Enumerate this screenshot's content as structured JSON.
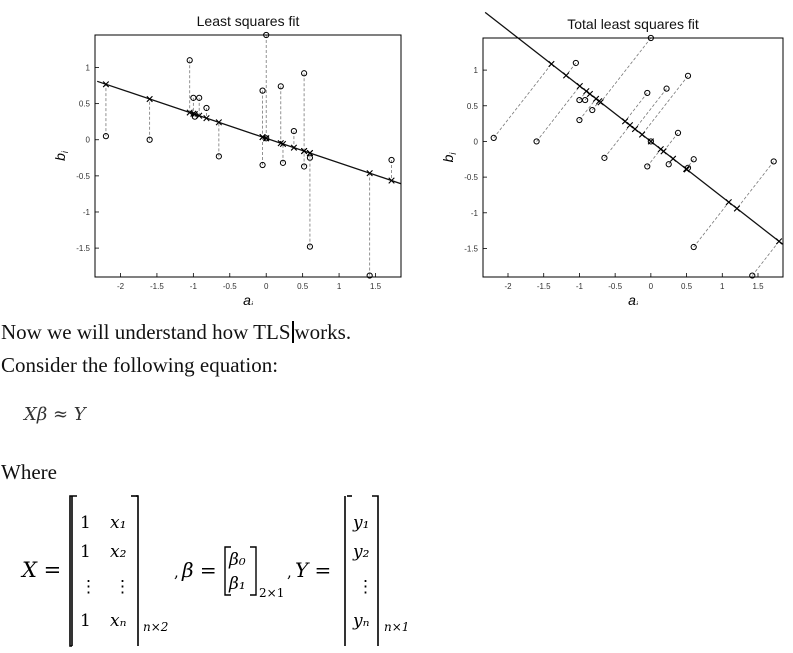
{
  "chart_data": [
    {
      "type": "scatter",
      "title": "Least squares fit",
      "xlabel": "a_i",
      "ylabel": "b_i",
      "xlim": [
        -2.35,
        1.85
      ],
      "ylim": [
        -1.9,
        1.45
      ],
      "xticks": [
        -2,
        -1.5,
        -1,
        -0.5,
        0,
        0.5,
        1,
        1.5
      ],
      "xtick_labels": [
        "-2",
        "-1.5",
        "-1",
        "-0.5",
        "0",
        "0.5",
        "1",
        "1.5"
      ],
      "yticks": [
        -1.5,
        -1,
        -0.5,
        0,
        0.5,
        1
      ],
      "ytick_labels": [
        "-1.5",
        "-1",
        "-0.5",
        "0",
        "0.5",
        "1"
      ],
      "fit_line": {
        "slope": -0.34,
        "intercept": 0.02
      },
      "points": [
        {
          "x": -2.2,
          "y": 0.05
        },
        {
          "x": -1.6,
          "y": 0.0
        },
        {
          "x": -1.05,
          "y": 1.1
        },
        {
          "x": -1.0,
          "y": 0.58
        },
        {
          "x": -0.98,
          "y": 0.32
        },
        {
          "x": -0.92,
          "y": 0.58
        },
        {
          "x": -0.82,
          "y": 0.44
        },
        {
          "x": -0.65,
          "y": -0.23
        },
        {
          "x": -0.05,
          "y": 0.68
        },
        {
          "x": -0.05,
          "y": -0.35
        },
        {
          "x": 0.0,
          "y": 1.45
        },
        {
          "x": 0.0,
          "y": 0.02
        },
        {
          "x": 0.2,
          "y": 0.74
        },
        {
          "x": 0.23,
          "y": -0.32
        },
        {
          "x": 0.38,
          "y": 0.12
        },
        {
          "x": 0.52,
          "y": 0.92
        },
        {
          "x": 0.52,
          "y": -0.37
        },
        {
          "x": 0.6,
          "y": -0.25
        },
        {
          "x": 0.6,
          "y": -1.48
        },
        {
          "x": 1.42,
          "y": -1.88
        },
        {
          "x": 1.72,
          "y": -0.28
        }
      ]
    },
    {
      "type": "scatter",
      "title": "Total least squares fit",
      "xlabel": "a_i",
      "ylabel": "b_i",
      "xlim": [
        -2.35,
        1.85
      ],
      "ylim": [
        -1.9,
        1.45
      ],
      "xticks": [
        -2,
        -1.5,
        -1,
        -0.5,
        0,
        0.5,
        1,
        1.5
      ],
      "xtick_labels": [
        "-2",
        "-1.5",
        "-1",
        "-0.5",
        "0",
        "0.5",
        "1",
        "1.5"
      ],
      "yticks": [
        -1.5,
        -1,
        -0.5,
        0,
        0.5,
        1
      ],
      "ytick_labels": [
        "-1.5",
        "-1",
        "-0.5",
        "0",
        "0.5",
        "1"
      ],
      "fit_line": {
        "slope": -0.78,
        "intercept": -0.0
      },
      "points": [
        {
          "x": -2.2,
          "y": 0.05
        },
        {
          "x": -1.6,
          "y": 0.0
        },
        {
          "x": -1.05,
          "y": 1.1
        },
        {
          "x": -1.0,
          "y": 0.58
        },
        {
          "x": -1.0,
          "y": 0.3
        },
        {
          "x": -0.92,
          "y": 0.58
        },
        {
          "x": -0.82,
          "y": 0.44
        },
        {
          "x": -0.65,
          "y": -0.23
        },
        {
          "x": -0.05,
          "y": 0.68
        },
        {
          "x": -0.05,
          "y": -0.35
        },
        {
          "x": 0.0,
          "y": 1.45
        },
        {
          "x": 0.0,
          "y": 0.0
        },
        {
          "x": 0.22,
          "y": 0.74
        },
        {
          "x": 0.25,
          "y": -0.32
        },
        {
          "x": 0.38,
          "y": 0.12
        },
        {
          "x": 0.52,
          "y": 0.92
        },
        {
          "x": 0.52,
          "y": -0.37
        },
        {
          "x": 0.6,
          "y": -0.25
        },
        {
          "x": 0.6,
          "y": -1.48
        },
        {
          "x": 1.42,
          "y": -1.88
        },
        {
          "x": 1.72,
          "y": -0.28
        }
      ]
    }
  ],
  "text": {
    "line1_before_cursor": "Now we will understand how TLS",
    "line1_after_cursor": "works.",
    "line2": "Consider the following equation:",
    "equation": "Xβ ≈ Y",
    "where": "Where"
  },
  "matrices": {
    "X_lhs": "X =",
    "X_rows": [
      [
        "1",
        "x₁"
      ],
      [
        "1",
        "x₂"
      ],
      [
        "⋮",
        "⋮"
      ],
      [
        "1",
        "xₙ"
      ]
    ],
    "X_sub": "n×2",
    "beta_lhs": "β =",
    "beta_rows": [
      "β₀",
      "β₁"
    ],
    "beta_sub": "2×1",
    "Y_lhs": "Y =",
    "Y_rows": [
      "y₁",
      "y₂",
      "⋮",
      "yₙ"
    ],
    "Y_sub": "n×1",
    "comma": ","
  }
}
